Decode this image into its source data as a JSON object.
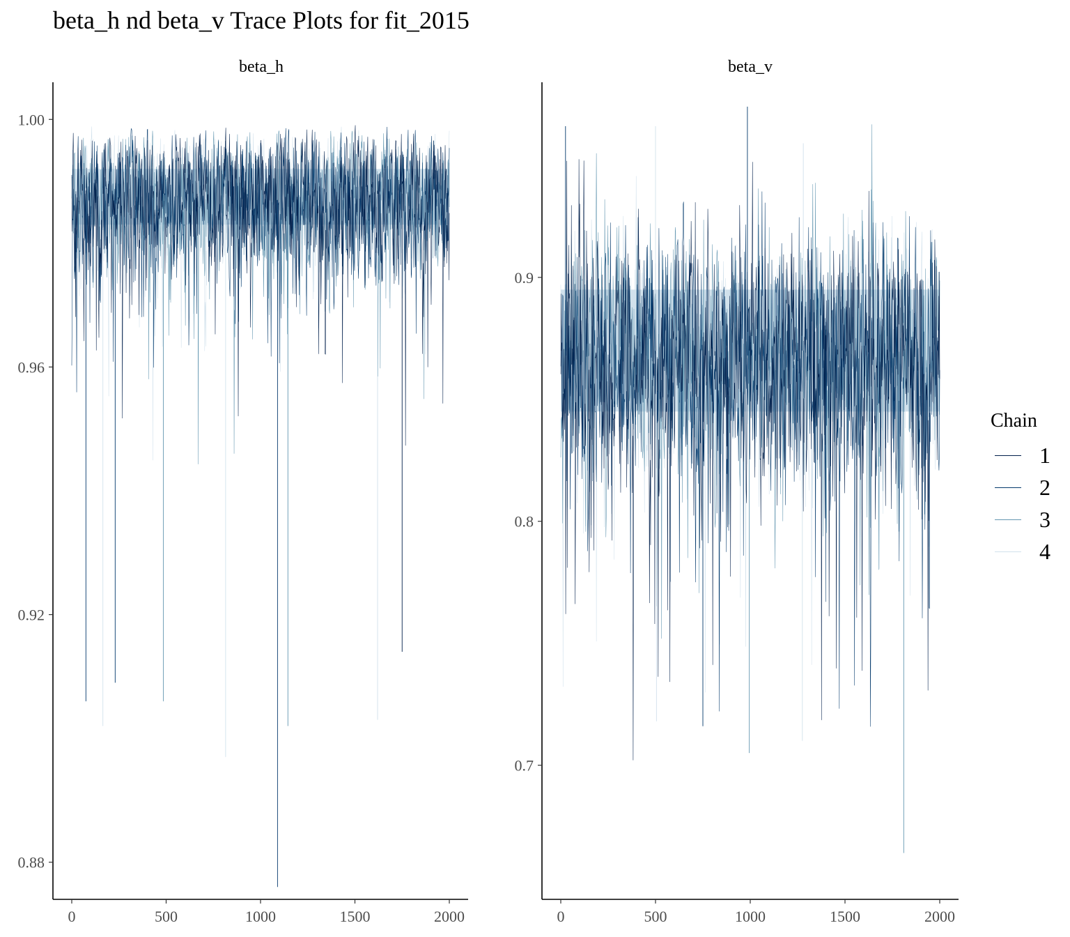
{
  "title": "beta_h nd beta_v Trace Plots for fit_2015",
  "legend": {
    "title": "Chain",
    "items": [
      {
        "label": "1",
        "color": "#011f4b"
      },
      {
        "label": "2",
        "color": "#03396c"
      },
      {
        "label": "3",
        "color": "#6497b1"
      },
      {
        "label": "4",
        "color": "#d1e1ec"
      }
    ]
  },
  "chart_data": [
    {
      "type": "line",
      "title": "beta_h",
      "xlim": [
        0,
        2000
      ],
      "ylim": [
        0.874,
        1.006
      ],
      "xticks": [
        0,
        500,
        1000,
        1500,
        2000
      ],
      "yticks": [
        0.88,
        0.92,
        0.96,
        1.0
      ],
      "ytick_labels": [
        "0.88",
        "0.92",
        "0.96",
        "1.00"
      ],
      "grid": false,
      "legend_position": "right",
      "band": {
        "lower": 0.983,
        "upper": 0.992
      },
      "series": [
        {
          "name": "1",
          "color": "#011f4b",
          "center": 0.988,
          "spread": 0.01,
          "clip_max": 1.0
        },
        {
          "name": "2",
          "color": "#03396c",
          "center": 0.987,
          "spread": 0.01,
          "clip_max": 1.0
        },
        {
          "name": "3",
          "color": "#6497b1",
          "center": 0.988,
          "spread": 0.009,
          "clip_max": 1.0
        },
        {
          "name": "4",
          "color": "#d1e1ec",
          "center": 0.988,
          "spread": 0.009,
          "clip_max": 1.0
        }
      ],
      "notable_minima": [
        {
          "chain": "2",
          "x": 1090,
          "y": 0.876
        },
        {
          "chain": "4",
          "x": 815,
          "y": 0.897
        },
        {
          "chain": "4",
          "x": 165,
          "y": 0.902
        },
        {
          "chain": "3",
          "x": 1145,
          "y": 0.902
        },
        {
          "chain": "4",
          "x": 1620,
          "y": 0.903
        },
        {
          "chain": "2",
          "x": 75,
          "y": 0.906
        },
        {
          "chain": "3",
          "x": 485,
          "y": 0.906
        },
        {
          "chain": "2",
          "x": 230,
          "y": 0.909
        },
        {
          "chain": "1",
          "x": 1750,
          "y": 0.914
        }
      ],
      "notable_maxima": []
    },
    {
      "type": "line",
      "title": "beta_v",
      "xlim": [
        0,
        2000
      ],
      "ylim": [
        0.645,
        0.98
      ],
      "xticks": [
        0,
        500,
        1000,
        1500,
        2000
      ],
      "yticks": [
        0.7,
        0.8,
        0.9
      ],
      "ytick_labels": [
        "0.7",
        "0.8",
        "0.9"
      ],
      "grid": false,
      "legend_position": "right",
      "band": {
        "lower": 0.845,
        "upper": 0.895
      },
      "series": [
        {
          "name": "1",
          "color": "#011f4b",
          "center": 0.87,
          "spread": 0.04
        },
        {
          "name": "2",
          "color": "#03396c",
          "center": 0.868,
          "spread": 0.04
        },
        {
          "name": "3",
          "color": "#6497b1",
          "center": 0.87,
          "spread": 0.038
        },
        {
          "name": "4",
          "color": "#d1e1ec",
          "center": 0.87,
          "spread": 0.037
        }
      ],
      "notable_minima": [
        {
          "chain": "3",
          "x": 1810,
          "y": 0.664
        },
        {
          "chain": "3",
          "x": 995,
          "y": 0.705
        },
        {
          "chain": "4",
          "x": 1275,
          "y": 0.71
        },
        {
          "chain": "2",
          "x": 750,
          "y": 0.716
        },
        {
          "chain": "4",
          "x": 505,
          "y": 0.718
        }
      ],
      "notable_maxima": [
        {
          "chain": "2",
          "x": 985,
          "y": 0.97
        },
        {
          "chain": "2",
          "x": 25,
          "y": 0.962
        },
        {
          "chain": "4",
          "x": 500,
          "y": 0.962
        },
        {
          "chain": "4",
          "x": 1280,
          "y": 0.955
        }
      ]
    }
  ]
}
